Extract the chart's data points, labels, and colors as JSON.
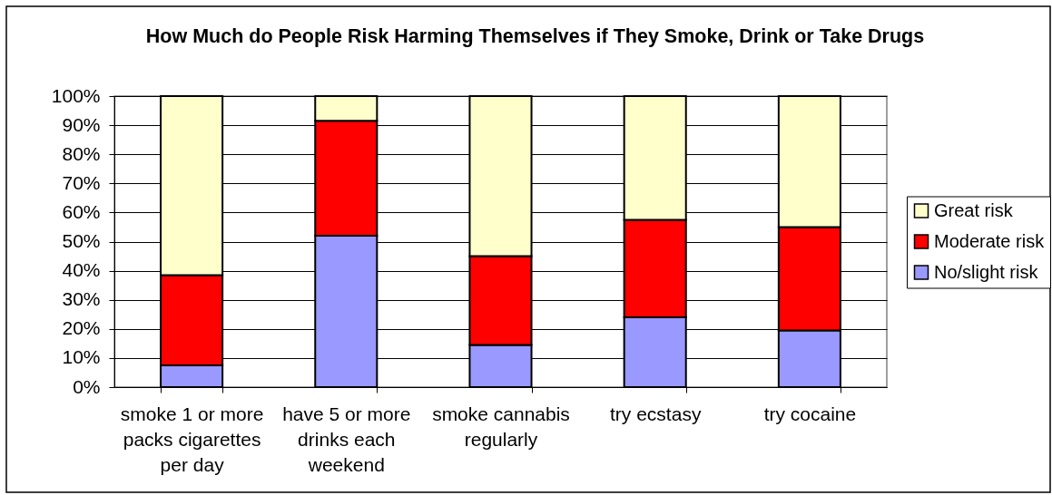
{
  "chart_data": {
    "type": "bar",
    "title": "How Much do People Risk Harming Themselves if They Smoke, Drink or Take Drugs",
    "categories": [
      "smoke 1 or more packs cigarettes per day",
      "have 5 or more drinks each weekend",
      "smoke cannabis regularly",
      "try ecstasy",
      "try cocaine"
    ],
    "series": [
      {
        "name": "No/slight risk",
        "color": "#9999ff",
        "values": [
          7.5,
          52,
          14.5,
          24,
          19.5
        ]
      },
      {
        "name": "Moderate risk",
        "color": "#ff0000",
        "values": [
          31,
          39.5,
          30.5,
          33.5,
          35.5
        ]
      },
      {
        "name": "Great risk",
        "color": "#ffffcc",
        "values": [
          61.5,
          8.5,
          55,
          42.5,
          45
        ]
      }
    ],
    "stacked": true,
    "ylim": [
      0,
      100
    ],
    "yticks": [
      {
        "value": 0,
        "label": "0%"
      },
      {
        "value": 10,
        "label": "10%"
      },
      {
        "value": 20,
        "label": "20%"
      },
      {
        "value": 30,
        "label": "30%"
      },
      {
        "value": 40,
        "label": "40%"
      },
      {
        "value": 50,
        "label": "50%"
      },
      {
        "value": 60,
        "label": "60%"
      },
      {
        "value": 70,
        "label": "70%"
      },
      {
        "value": 80,
        "label": "80%"
      },
      {
        "value": 90,
        "label": "90%"
      },
      {
        "value": 100,
        "label": "100%"
      }
    ],
    "grid": "y",
    "legend": "right"
  }
}
